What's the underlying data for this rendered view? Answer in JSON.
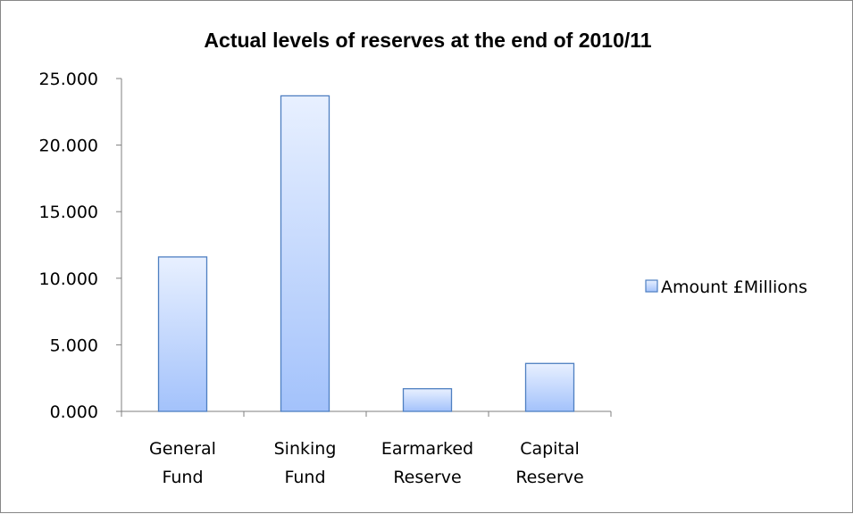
{
  "chart_data": {
    "type": "bar",
    "title": "Actual levels of reserves at the end of 2010/11",
    "xlabel": "",
    "ylabel": "",
    "categories": [
      [
        "General",
        "Fund"
      ],
      [
        "Sinking",
        "Fund"
      ],
      [
        "Earmarked",
        "Reserve"
      ],
      [
        "Capital",
        "Reserve"
      ]
    ],
    "series": [
      {
        "name": "Amount £Millions",
        "values": [
          11.6,
          23.7,
          1.7,
          3.6
        ]
      }
    ],
    "ylim": [
      0,
      25
    ],
    "yticks": [
      {
        "value": 0,
        "label": "0.000"
      },
      {
        "value": 5,
        "label": "5.000"
      },
      {
        "value": 10,
        "label": "10.000"
      },
      {
        "value": 15,
        "label": "15.000"
      },
      {
        "value": 20,
        "label": "20.000"
      },
      {
        "value": 25,
        "label": "25.000"
      }
    ],
    "grid": false,
    "legend_position": "right",
    "colors": {
      "bar_top": "#e8f0ff",
      "bar_bottom": "#a3c2fb",
      "bar_stroke": "#4e7fc1",
      "axis": "#7f7f7f"
    }
  }
}
